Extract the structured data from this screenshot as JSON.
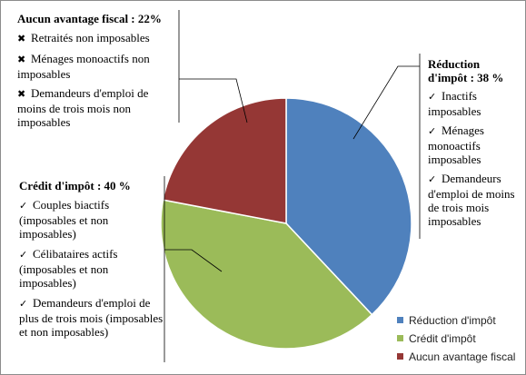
{
  "chart_data": {
    "type": "pie",
    "categories": [
      "Réduction d'impôt",
      "Crédit d'impôt",
      "Aucun avantage fiscal"
    ],
    "values": [
      38,
      40,
      22
    ],
    "colors": [
      "#4f81bd",
      "#9bbb59",
      "#953735"
    ],
    "legend_position": "bottom-right"
  },
  "annotations": {
    "none": {
      "head": "Aucun avantage fiscal : 22%",
      "items": [
        "Retraités non imposables",
        "Ménages monoactifs non imposables",
        "Demandeurs d'emploi de moins de trois mois non imposables"
      ]
    },
    "reduction": {
      "head": "Réduction d'impôt : 38 %",
      "items": [
        "Inactifs imposables",
        "Ménages monoactifs imposables",
        "Demandeurs d'emploi de moins de trois mois imposables"
      ]
    },
    "credit": {
      "head": "Crédit d'impôt : 40 %",
      "items": [
        "Couples biactifs (imposables et non imposables)",
        "Célibataires actifs (imposables et non imposables)",
        "Demandeurs d'emploi de plus de trois mois (imposables et non imposables)"
      ]
    }
  },
  "icons": {
    "cross": "cross-mark-icon",
    "check": "check-mark-icon"
  }
}
